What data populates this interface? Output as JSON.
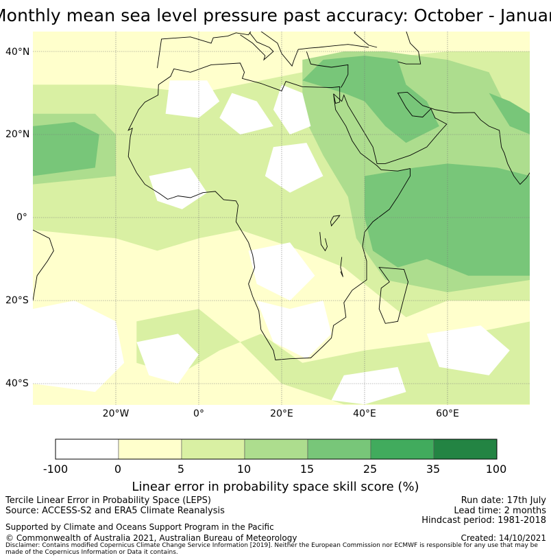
{
  "title": "Monthly mean sea level pressure past accuracy: October - January",
  "map": {
    "lat_ticks": [
      "40°N",
      "20°N",
      "0°",
      "20°S",
      "40°S"
    ],
    "lon_ticks": [
      "20°W",
      "0°",
      "20°E",
      "40°E",
      "60°E"
    ],
    "extent": {
      "lon": [
        -40,
        80
      ],
      "lat": [
        -45,
        45
      ]
    }
  },
  "colorbar": {
    "labels": [
      "-100",
      "0",
      "5",
      "10",
      "15",
      "25",
      "35",
      "100"
    ],
    "colors": [
      "#ffffff",
      "#ffffcc",
      "#d9f0a3",
      "#addd8e",
      "#78c679",
      "#41ab5d",
      "#238443"
    ],
    "title": "Linear error in probability space skill score (%)"
  },
  "info": {
    "left_line1": "Tercile Linear Error in Probability Space (LEPS)",
    "left_line2": "Source: ACCESS-S2 and ERA5 Climate Reanalysis",
    "run_date": "Run date: 17th July",
    "lead_time": "Lead time: 2 months",
    "hindcast": "Hindcast period: 1981-2018",
    "supported": "Supported by Climate and Oceans Support Program in the Pacific",
    "copyright": "© Commonwealth of Australia 2021, Australian Bureau of Meteorology",
    "created": "Created: 14/10/2021",
    "disclaimer": "Disclaimer: Contains modified Copernicus Climate Change Service Information [2019]. Neither the European Commission nor ECMWF is responsible for any use that may be made of the Copernicus Information or Data it contains."
  }
}
